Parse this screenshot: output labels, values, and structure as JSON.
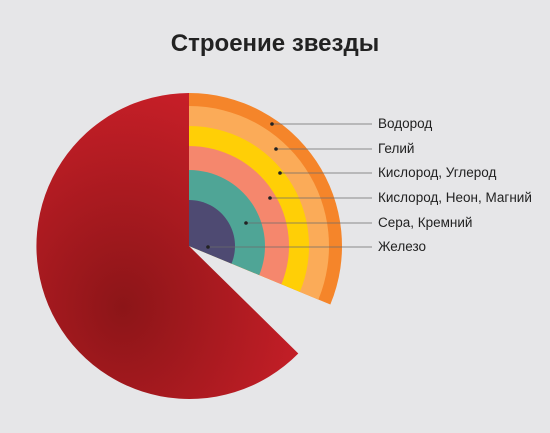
{
  "title": "Строение звезды",
  "layers": [
    {
      "label": "Водород",
      "color": "#f5852a"
    },
    {
      "label": "Гелий",
      "color": "#fbab58"
    },
    {
      "label": "Кислород, Углерод",
      "color": "#ffcf06"
    },
    {
      "label": "Кислород, Неон, Магний",
      "color": "#f5876d"
    },
    {
      "label": "Сера, Кремний",
      "color": "#4fa596"
    },
    {
      "label": "Железо",
      "color": "#4e4a72"
    }
  ],
  "colors": {
    "background": "#e6e6e8",
    "star_outer": "#c81f28",
    "star_inner": "#8c1518",
    "leader_line": "#6b6b6b"
  }
}
